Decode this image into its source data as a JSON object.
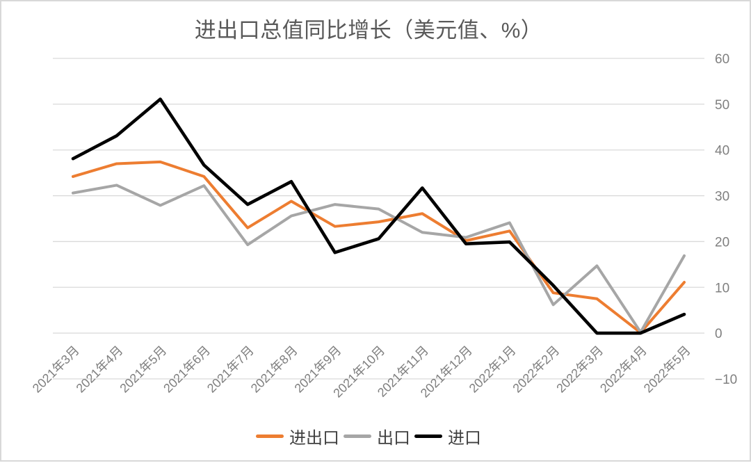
{
  "title": "进出口总值同比增长（美元值、%）",
  "chart_data": {
    "type": "line",
    "title": "进出口总值同比增长（美元值、%）",
    "xlabel": "",
    "ylabel": "",
    "ylim": [
      -10,
      60
    ],
    "grid": true,
    "y_axis_side": "right",
    "legend_position": "bottom",
    "yticks": [
      {
        "v": 60,
        "label": "60"
      },
      {
        "v": 50,
        "label": "50"
      },
      {
        "v": 40,
        "label": "40"
      },
      {
        "v": 30,
        "label": "30"
      },
      {
        "v": 20,
        "label": "20"
      },
      {
        "v": 10,
        "label": "10"
      },
      {
        "v": 0,
        "label": "0"
      },
      {
        "v": -10,
        "label": "−10"
      }
    ],
    "categories": [
      "2021年3月",
      "2021年4月",
      "2021年5月",
      "2021年6月",
      "2021年7月",
      "2021年8月",
      "2021年9月",
      "2021年10月",
      "2021年11月",
      "2021年12月",
      "2022年1月",
      "2022年2月",
      "2022年3月",
      "2022年4月",
      "2022年5月"
    ],
    "series": [
      {
        "name": "进出口",
        "color": "#ED7D31",
        "values": [
          34.2,
          37.0,
          37.4,
          34.2,
          23.0,
          28.8,
          23.3,
          24.3,
          26.1,
          20.2,
          22.3,
          8.8,
          7.5,
          0.1,
          11.1
        ]
      },
      {
        "name": "出口",
        "color": "#A6A6A6",
        "values": [
          30.6,
          32.3,
          27.9,
          32.2,
          19.3,
          25.6,
          28.1,
          27.1,
          22.0,
          20.9,
          24.1,
          6.2,
          14.7,
          0.2,
          16.9
        ]
      },
      {
        "name": "进口",
        "color": "#000000",
        "values": [
          38.1,
          43.1,
          51.1,
          36.7,
          28.1,
          33.1,
          17.6,
          20.6,
          31.7,
          19.5,
          19.9,
          10.4,
          0.0,
          0.0,
          4.1
        ]
      }
    ]
  },
  "colors": {
    "gridline": "#D9D9D9",
    "axis_text": "#7F7F7F",
    "title_text": "#595959",
    "legend_text": "#404040",
    "frame_border": "#D8D8D8"
  }
}
